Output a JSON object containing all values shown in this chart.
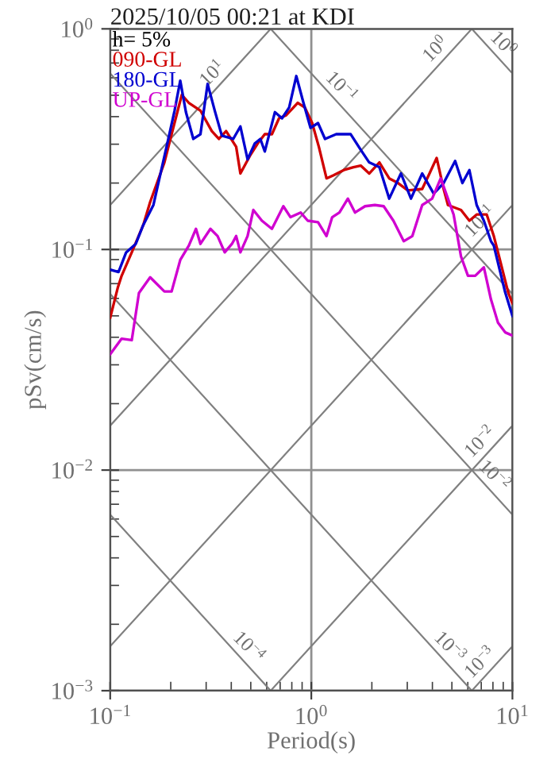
{
  "chart_data": {
    "type": "line",
    "title": "2025/10/05 00:21 at KDI",
    "xlabel": "Period(s)",
    "ylabel": "pSv(cm/s)",
    "legend_title": "h= 5%",
    "log": "xy",
    "grid": true,
    "legend": "top left",
    "xlim": [
      0.1,
      10
    ],
    "ylim": [
      0.001,
      1
    ],
    "xticks": [
      {
        "value": 0.1,
        "label": "10$^{−1}$"
      },
      {
        "value": 1,
        "label": "10$^{0}$"
      },
      {
        "value": 10,
        "label": "10$^{1}$"
      }
    ],
    "yticks": [
      {
        "value": 0.001,
        "label": "10$^{−3}$"
      },
      {
        "value": 0.01,
        "label": "10$^{−2}$"
      },
      {
        "value": 0.1,
        "label": "10$^{−1}$"
      },
      {
        "value": 1,
        "label": "10$^{0}$"
      }
    ],
    "series": [
      {
        "name": "090-GL",
        "color": "#d00000",
        "x": [
          0.1,
          0.109,
          0.114,
          0.128,
          0.146,
          0.158,
          0.186,
          0.202,
          0.227,
          0.246,
          0.281,
          0.32,
          0.347,
          0.377,
          0.423,
          0.444,
          0.499,
          0.541,
          0.587,
          0.637,
          0.691,
          0.75,
          0.815,
          0.855,
          0.929,
          1.01,
          1.09,
          1.19,
          1.29,
          1.45,
          1.62,
          1.76,
          1.94,
          2.18,
          2.44,
          2.7,
          3.02,
          3.56,
          3.87,
          4.2,
          4.55,
          4.78,
          5.55,
          6.11,
          6.64,
          7.45,
          8.08,
          8.48,
          9.52,
          10
        ],
        "values": [
          0.049,
          0.067,
          0.076,
          0.097,
          0.129,
          0.164,
          0.248,
          0.333,
          0.502,
          0.462,
          0.426,
          0.344,
          0.317,
          0.344,
          0.292,
          0.221,
          0.269,
          0.302,
          0.333,
          0.333,
          0.393,
          0.406,
          0.44,
          0.462,
          0.44,
          0.374,
          0.292,
          0.21,
          0.217,
          0.229,
          0.236,
          0.24,
          0.221,
          0.248,
          0.21,
          0.2,
          0.185,
          0.188,
          0.221,
          0.26,
          0.188,
          0.159,
          0.151,
          0.135,
          0.144,
          0.144,
          0.115,
          0.097,
          0.064,
          0.057
        ]
      },
      {
        "name": "180-GL",
        "color": "#0000d0",
        "x": [
          0.1,
          0.11,
          0.12,
          0.134,
          0.146,
          0.164,
          0.193,
          0.209,
          0.223,
          0.238,
          0.259,
          0.281,
          0.305,
          0.331,
          0.359,
          0.409,
          0.444,
          0.482,
          0.523,
          0.558,
          0.587,
          0.659,
          0.715,
          0.776,
          0.842,
          0.914,
          0.991,
          1.08,
          1.17,
          1.33,
          1.57,
          1.76,
          1.94,
          2.18,
          2.44,
          2.79,
          3.13,
          3.56,
          4.06,
          4.55,
          5.19,
          5.64,
          6.11,
          6.64,
          7.21,
          7.82,
          8.08,
          9.2,
          10
        ],
        "values": [
          0.081,
          0.079,
          0.097,
          0.106,
          0.129,
          0.159,
          0.307,
          0.426,
          0.582,
          0.419,
          0.317,
          0.333,
          0.563,
          0.426,
          0.328,
          0.317,
          0.361,
          0.256,
          0.302,
          0.317,
          0.278,
          0.419,
          0.393,
          0.44,
          0.611,
          0.462,
          0.356,
          0.374,
          0.317,
          0.333,
          0.333,
          0.283,
          0.248,
          0.236,
          0.17,
          0.221,
          0.17,
          0.221,
          0.179,
          0.2,
          0.252,
          0.2,
          0.229,
          0.159,
          0.135,
          0.109,
          0.104,
          0.064,
          0.05
        ]
      },
      {
        "name": "UP-GL",
        "color": "#d000d0",
        "x": [
          0.1,
          0.114,
          0.128,
          0.139,
          0.158,
          0.186,
          0.202,
          0.223,
          0.246,
          0.267,
          0.281,
          0.315,
          0.342,
          0.371,
          0.403,
          0.423,
          0.444,
          0.482,
          0.515,
          0.568,
          0.637,
          0.726,
          0.788,
          0.885,
          0.96,
          1.08,
          1.19,
          1.27,
          1.38,
          1.52,
          1.65,
          1.85,
          2.07,
          2.29,
          2.56,
          2.88,
          3.18,
          3.56,
          3.99,
          4.4,
          5.1,
          5.55,
          6.01,
          6.53,
          7.21,
          7.82,
          8.48,
          9.2,
          10
        ],
        "values": [
          0.0335,
          0.0394,
          0.0388,
          0.0635,
          0.0748,
          0.0645,
          0.0645,
          0.0896,
          0.104,
          0.124,
          0.106,
          0.124,
          0.115,
          0.097,
          0.106,
          0.115,
          0.097,
          0.115,
          0.151,
          0.135,
          0.124,
          0.157,
          0.14,
          0.147,
          0.135,
          0.133,
          0.115,
          0.14,
          0.147,
          0.17,
          0.147,
          0.157,
          0.159,
          0.157,
          0.135,
          0.109,
          0.115,
          0.159,
          0.17,
          0.21,
          0.144,
          0.093,
          0.076,
          0.076,
          0.083,
          0.0594,
          0.0465,
          0.0421,
          0.0407
        ]
      },
      {
        "color": "#808080",
        "x": [
          0.1,
          0.628
        ],
        "values": [
          0.159,
          1
        ]
      },
      {
        "color": "#808080",
        "x": [
          0.1,
          6.28
        ],
        "values": [
          0.0159,
          1
        ]
      },
      {
        "color": "#808080",
        "x": [
          0.1,
          10
        ],
        "values": [
          0.00159,
          0.159
        ]
      },
      {
        "color": "#808080",
        "x": [
          0.628,
          10
        ],
        "values": [
          0.001,
          0.0159
        ]
      },
      {
        "color": "#808080",
        "x": [
          6.28,
          10
        ],
        "values": [
          0.001,
          0.00159
        ]
      },
      {
        "color": "#808080",
        "x": [
          6.28,
          10
        ],
        "values": [
          1,
          0.628
        ]
      },
      {
        "color": "#808080",
        "x": [
          0.628,
          10
        ],
        "values": [
          1,
          0.0628
        ]
      },
      {
        "color": "#808080",
        "x": [
          0.1,
          10
        ],
        "values": [
          0.628,
          0.00628
        ]
      },
      {
        "color": "#808080",
        "x": [
          0.1,
          6.28
        ],
        "values": [
          0.0628,
          0.001
        ]
      },
      {
        "color": "#808080",
        "x": [
          0.1,
          0.628
        ],
        "values": [
          0.00628,
          0.001
        ]
      }
    ],
    "annotations": [
      {
        "text": "10$^{1}$",
        "x": 0.35,
        "y": 0.557
      },
      {
        "text": "10$^{0}$",
        "x": 4.5,
        "y": 0.717
      },
      {
        "text": "10$^{0}$",
        "x": 8.3,
        "y": 0.757
      },
      {
        "text": "10$^{−1}$",
        "x": 7.5,
        "y": 0.119
      },
      {
        "text": "10$^{−1}$",
        "x": 1.3,
        "y": 0.483
      },
      {
        "text": "10$^{−2}$",
        "x": 7.5,
        "y": 0.0119
      },
      {
        "text": "10$^{−2}$",
        "x": 7.5,
        "y": 0.00837
      },
      {
        "text": "10$^{−3}$",
        "x": 7.5,
        "y": 0.00119
      },
      {
        "text": "10$^{−3}$",
        "x": 4.5,
        "y": 0.0014
      },
      {
        "text": "10$^{−4}$",
        "x": 0.45,
        "y": 0.0014
      }
    ]
  }
}
